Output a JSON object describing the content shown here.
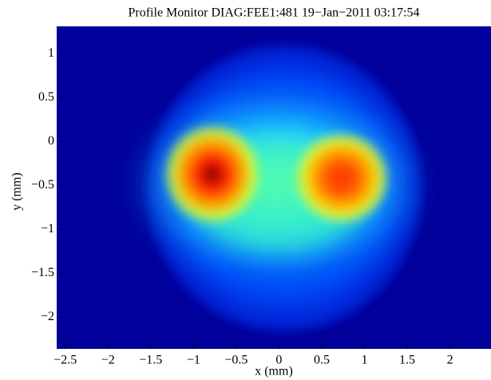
{
  "chart_data": {
    "type": "image",
    "title": "Profile Monitor DIAG:FEE1:481 19−Jan−2011 03:17:54",
    "xlabel": "x  (mm)",
    "ylabel": "y  (mm)",
    "xlim": [
      -2.6,
      2.48
    ],
    "ylim": [
      -2.36,
      1.31
    ],
    "xticks": [
      {
        "value": -2.5,
        "label": "−2.5"
      },
      {
        "value": -2,
        "label": "−2"
      },
      {
        "value": -1.5,
        "label": "−1.5"
      },
      {
        "value": -1,
        "label": "−1"
      },
      {
        "value": -0.5,
        "label": "−0.5"
      },
      0,
      0.5,
      1,
      1.5,
      2
    ],
    "yticks": [
      1,
      0.5,
      0,
      {
        "value": -0.5,
        "label": "−0.5"
      },
      {
        "value": -1,
        "label": "−1"
      },
      {
        "value": -1.5,
        "label": "−1.5"
      },
      {
        "value": -2,
        "label": "−2"
      }
    ]
  }
}
